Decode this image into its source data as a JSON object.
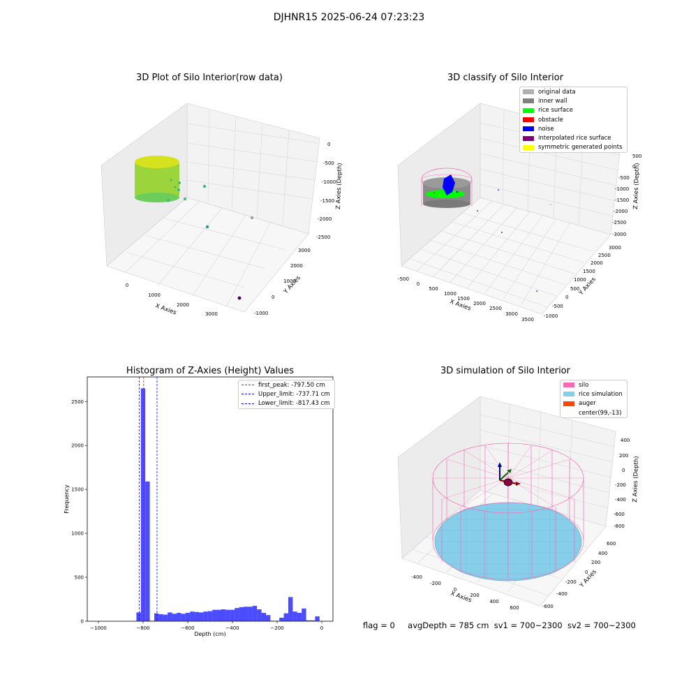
{
  "figure": {
    "suptitle": "DJHNR15 2025-06-24 07:23:23"
  },
  "panels": {
    "raw": {
      "title": "3D Plot of Silo Interior(row data)",
      "xlabel": "X Axies",
      "ylabel": "Y Axies",
      "zlabel": "Z Axies (Depth)",
      "xticks": [
        "0",
        "1000",
        "2000",
        "3000"
      ],
      "yticks": [
        "-1000",
        "0",
        "1000",
        "2000",
        "3000"
      ],
      "zticks": [
        "0",
        "-500",
        "-1000",
        "-1500",
        "-2000",
        "-2500"
      ]
    },
    "classify": {
      "title": "3D classify of Silo Interior",
      "xlabel": "X Axies",
      "ylabel": "Y Axies",
      "zlabel": "Z Axies (Depth)",
      "xticks": [
        "-500",
        "0",
        "500",
        "1000",
        "1500",
        "2000",
        "2500",
        "3000",
        "3500"
      ],
      "yticks": [
        "-1000",
        "-500",
        "0",
        "500",
        "1000",
        "1500",
        "2000",
        "2500",
        "3000"
      ],
      "zticks": [
        "500",
        "0",
        "-500",
        "-1000",
        "-1500",
        "-2000",
        "-2500",
        "-3000"
      ],
      "legend": [
        {
          "label": "original data",
          "color": "#b0b0b0"
        },
        {
          "label": "inner wall",
          "color": "#808080"
        },
        {
          "label": "rice surface",
          "color": "#00ff00"
        },
        {
          "label": "obstacle",
          "color": "#ff0000"
        },
        {
          "label": "noise",
          "color": "#0000ff"
        },
        {
          "label": "interpolated rice surface",
          "color": "#800080"
        },
        {
          "label": "symmetric generated points",
          "color": "#ffff00"
        }
      ]
    },
    "histogram": {
      "title": "Histogram of Z-Axies (Height) Values",
      "xlabel": "Depth (cm)",
      "ylabel": "Frequency",
      "legend": [
        {
          "label": "first_peak: -797.50 cm",
          "color": "#ff0000"
        },
        {
          "label": "Upper_limit: -737.71 cm",
          "color": "#0000ff"
        },
        {
          "label": "Lower_limit: -817.43 cm",
          "color": "#0000ff"
        }
      ]
    },
    "simulation": {
      "title": "3D simulation of Silo Interior",
      "xlabel": "X Axies",
      "ylabel": "Y Axies",
      "zlabel": "Z Axies (Depth)",
      "xticks": [
        "-400",
        "-200",
        "0",
        "200",
        "400",
        "600"
      ],
      "yticks": [
        "-600",
        "-400",
        "-200",
        "0",
        "200",
        "400",
        "600"
      ],
      "zticks": [
        "400",
        "200",
        "0",
        "-200",
        "-400",
        "-600",
        "-800"
      ],
      "legend": [
        {
          "label": "silo",
          "color": "#ff69b4"
        },
        {
          "label": "rice simulation",
          "color": "#87ceeb"
        },
        {
          "label": "auger",
          "color": "#ff4500"
        },
        {
          "label": "center(99,-13)",
          "color": ""
        }
      ]
    }
  },
  "footer": {
    "flag": "flag = 0",
    "avg": "avgDepth = 785 cm",
    "sv1": "sv1 = 700~2300",
    "sv2": "sv2 = 700~2300"
  },
  "chart_data": [
    {
      "type": "histogram",
      "title": "Histogram of Z-Axies (Height) Values",
      "xlabel": "Depth (cm)",
      "ylabel": "Frequency",
      "xlim": [
        -1050,
        50
      ],
      "ylim": [
        0,
        2780
      ],
      "xticks": [
        -1000,
        -800,
        -600,
        -400,
        -200,
        0
      ],
      "yticks": [
        0,
        500,
        1000,
        1500,
        2000,
        2500
      ],
      "color": "#0000ff",
      "bins": [
        {
          "x0": -850,
          "x1": -830,
          "count": 2
        },
        {
          "x0": -830,
          "x1": -810,
          "count": 100
        },
        {
          "x0": -810,
          "x1": -790,
          "count": 2650
        },
        {
          "x0": -790,
          "x1": -770,
          "count": 1590
        },
        {
          "x0": -770,
          "x1": -750,
          "count": 5
        },
        {
          "x0": -750,
          "x1": -730,
          "count": 90
        },
        {
          "x0": -730,
          "x1": -710,
          "count": 80
        },
        {
          "x0": -710,
          "x1": -690,
          "count": 75
        },
        {
          "x0": -690,
          "x1": -670,
          "count": 100
        },
        {
          "x0": -670,
          "x1": -650,
          "count": 85
        },
        {
          "x0": -650,
          "x1": -630,
          "count": 95
        },
        {
          "x0": -630,
          "x1": -610,
          "count": 85
        },
        {
          "x0": -610,
          "x1": -590,
          "count": 95
        },
        {
          "x0": -590,
          "x1": -570,
          "count": 110
        },
        {
          "x0": -570,
          "x1": -550,
          "count": 105
        },
        {
          "x0": -550,
          "x1": -530,
          "count": 100
        },
        {
          "x0": -530,
          "x1": -510,
          "count": 110
        },
        {
          "x0": -510,
          "x1": -490,
          "count": 115
        },
        {
          "x0": -490,
          "x1": -470,
          "count": 130
        },
        {
          "x0": -470,
          "x1": -450,
          "count": 130
        },
        {
          "x0": -450,
          "x1": -430,
          "count": 135
        },
        {
          "x0": -430,
          "x1": -410,
          "count": 130
        },
        {
          "x0": -410,
          "x1": -390,
          "count": 130
        },
        {
          "x0": -390,
          "x1": -370,
          "count": 150
        },
        {
          "x0": -370,
          "x1": -350,
          "count": 160
        },
        {
          "x0": -350,
          "x1": -330,
          "count": 165
        },
        {
          "x0": -330,
          "x1": -310,
          "count": 165
        },
        {
          "x0": -310,
          "x1": -290,
          "count": 175
        },
        {
          "x0": -290,
          "x1": -270,
          "count": 135
        },
        {
          "x0": -270,
          "x1": -250,
          "count": 95
        },
        {
          "x0": -250,
          "x1": -230,
          "count": 70
        },
        {
          "x0": -230,
          "x1": -210,
          "count": 5
        },
        {
          "x0": -210,
          "x1": -190,
          "count": 5
        },
        {
          "x0": -190,
          "x1": -170,
          "count": 40
        },
        {
          "x0": -170,
          "x1": -150,
          "count": 90
        },
        {
          "x0": -150,
          "x1": -130,
          "count": 275
        },
        {
          "x0": -130,
          "x1": -110,
          "count": 110
        },
        {
          "x0": -110,
          "x1": -90,
          "count": 95
        },
        {
          "x0": -90,
          "x1": -70,
          "count": 145
        },
        {
          "x0": -70,
          "x1": -50,
          "count": 10
        },
        {
          "x0": -50,
          "x1": -30,
          "count": 10
        },
        {
          "x0": -30,
          "x1": -10,
          "count": 55
        }
      ],
      "vlines": [
        {
          "label": "first_peak: -797.50 cm",
          "x": -797.5,
          "color": "#ff0000"
        },
        {
          "label": "Upper_limit: -737.71 cm",
          "x": -737.71,
          "color": "#0000ff"
        },
        {
          "label": "Lower_limit: -817.43 cm",
          "x": -817.43,
          "color": "#0000ff"
        }
      ],
      "legend_position": "top-right"
    }
  ]
}
